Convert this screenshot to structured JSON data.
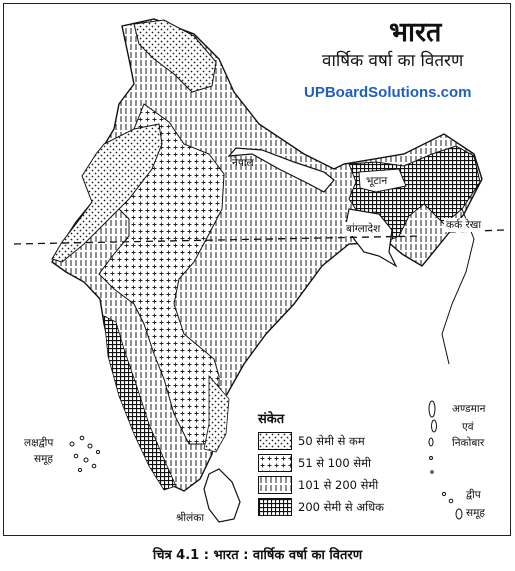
{
  "map": {
    "title": "भारत",
    "subtitle": "वार्षिक वर्षा का वितरण",
    "watermark": "UPBoardSolutions.com",
    "labels": {
      "nepal": "नेपाल",
      "bhutan": "भूटान",
      "bangladesh": "बांग्लादेश",
      "tropic": "कर्क रेखा",
      "srilanka": "श्रीलंका",
      "lakshadweep_1": "लक्षद्वीप",
      "lakshadweep_2": "समूह",
      "andaman_1": "अण्डमान",
      "andaman_2": "एवं",
      "andaman_3": "निकोबार",
      "island_1": "द्वीप",
      "island_2": "समूह"
    },
    "legend": {
      "title": "संकेत",
      "items": [
        {
          "label": "50 सेमी से कम",
          "pattern": "dots"
        },
        {
          "label": "51 से 100 सेमी",
          "pattern": "cross"
        },
        {
          "label": "101 से 200 सेमी",
          "pattern": "vlines"
        },
        {
          "label": "200 सेमी से अधिक",
          "pattern": "grid"
        }
      ]
    },
    "caption": "चित्र 4.1 : भारत : वार्षिक वर्षा का वितरण"
  }
}
